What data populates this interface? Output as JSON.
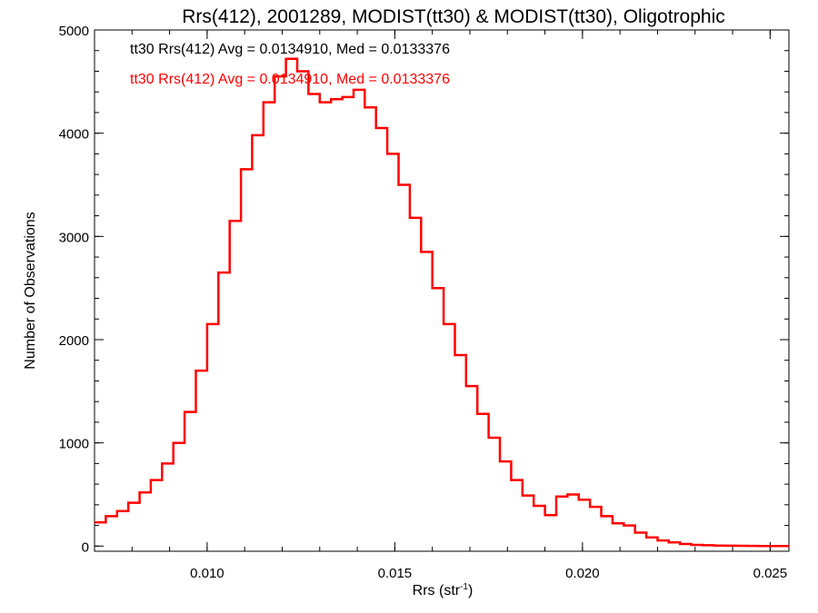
{
  "chart_data": {
    "type": "line",
    "title": "Rrs(412), 2001289, MODIST(tt30) & MODIST(tt30), Oligotrophic",
    "xlabel_main": "Rrs (str",
    "xlabel_sup": "-1",
    "xlabel_end": ")",
    "ylabel": "Number of Observations",
    "xlim": [
      0.007,
      0.0255
    ],
    "ylim": [
      -50,
      5000
    ],
    "xticks": [
      0.01,
      0.015,
      0.02,
      0.025
    ],
    "xtick_labels": [
      "0.010",
      "0.015",
      "0.020",
      "0.025"
    ],
    "yticks": [
      0,
      1000,
      2000,
      3000,
      4000,
      5000
    ],
    "ytick_labels": [
      "0",
      "1000",
      "2000",
      "3000",
      "4000",
      "5000"
    ],
    "annotations": [
      {
        "text": "tt30 Rrs(412) Avg = 0.0134910, Med = 0.0133376",
        "color": "#000000"
      },
      {
        "text": "tt30 Rrs(412) Avg = 0.0134910, Med = 0.0133376",
        "color": "#ff0000"
      }
    ],
    "series": [
      {
        "color": "#ff0000",
        "step": "histogram",
        "x": [
          0.007,
          0.0073,
          0.0076,
          0.0079,
          0.0082,
          0.0085,
          0.0088,
          0.0091,
          0.0094,
          0.0097,
          0.01,
          0.0103,
          0.0106,
          0.0109,
          0.0112,
          0.0115,
          0.0118,
          0.0121,
          0.0124,
          0.0127,
          0.013,
          0.0133,
          0.0136,
          0.0139,
          0.0142,
          0.0145,
          0.0148,
          0.0151,
          0.0154,
          0.0157,
          0.016,
          0.0163,
          0.0166,
          0.0169,
          0.0172,
          0.0175,
          0.0178,
          0.0181,
          0.0184,
          0.0187,
          0.019,
          0.0193,
          0.0196,
          0.0199,
          0.0202,
          0.0205,
          0.0208,
          0.0211,
          0.0214,
          0.0217,
          0.022,
          0.0223,
          0.0226,
          0.0229,
          0.0232,
          0.0235,
          0.0238,
          0.0241,
          0.0244,
          0.0247,
          0.025,
          0.0253
        ],
        "y": [
          230,
          290,
          340,
          420,
          520,
          640,
          800,
          1000,
          1300,
          1700,
          2150,
          2650,
          3150,
          3650,
          3980,
          4300,
          4550,
          4720,
          4600,
          4380,
          4300,
          4330,
          4350,
          4420,
          4250,
          4050,
          3800,
          3500,
          3180,
          2850,
          2500,
          2150,
          1850,
          1550,
          1280,
          1050,
          820,
          640,
          490,
          390,
          300,
          480,
          500,
          450,
          380,
          290,
          220,
          200,
          130,
          85,
          55,
          35,
          20,
          12,
          8,
          5,
          4,
          3,
          2,
          1,
          1,
          0
        ]
      }
    ]
  }
}
